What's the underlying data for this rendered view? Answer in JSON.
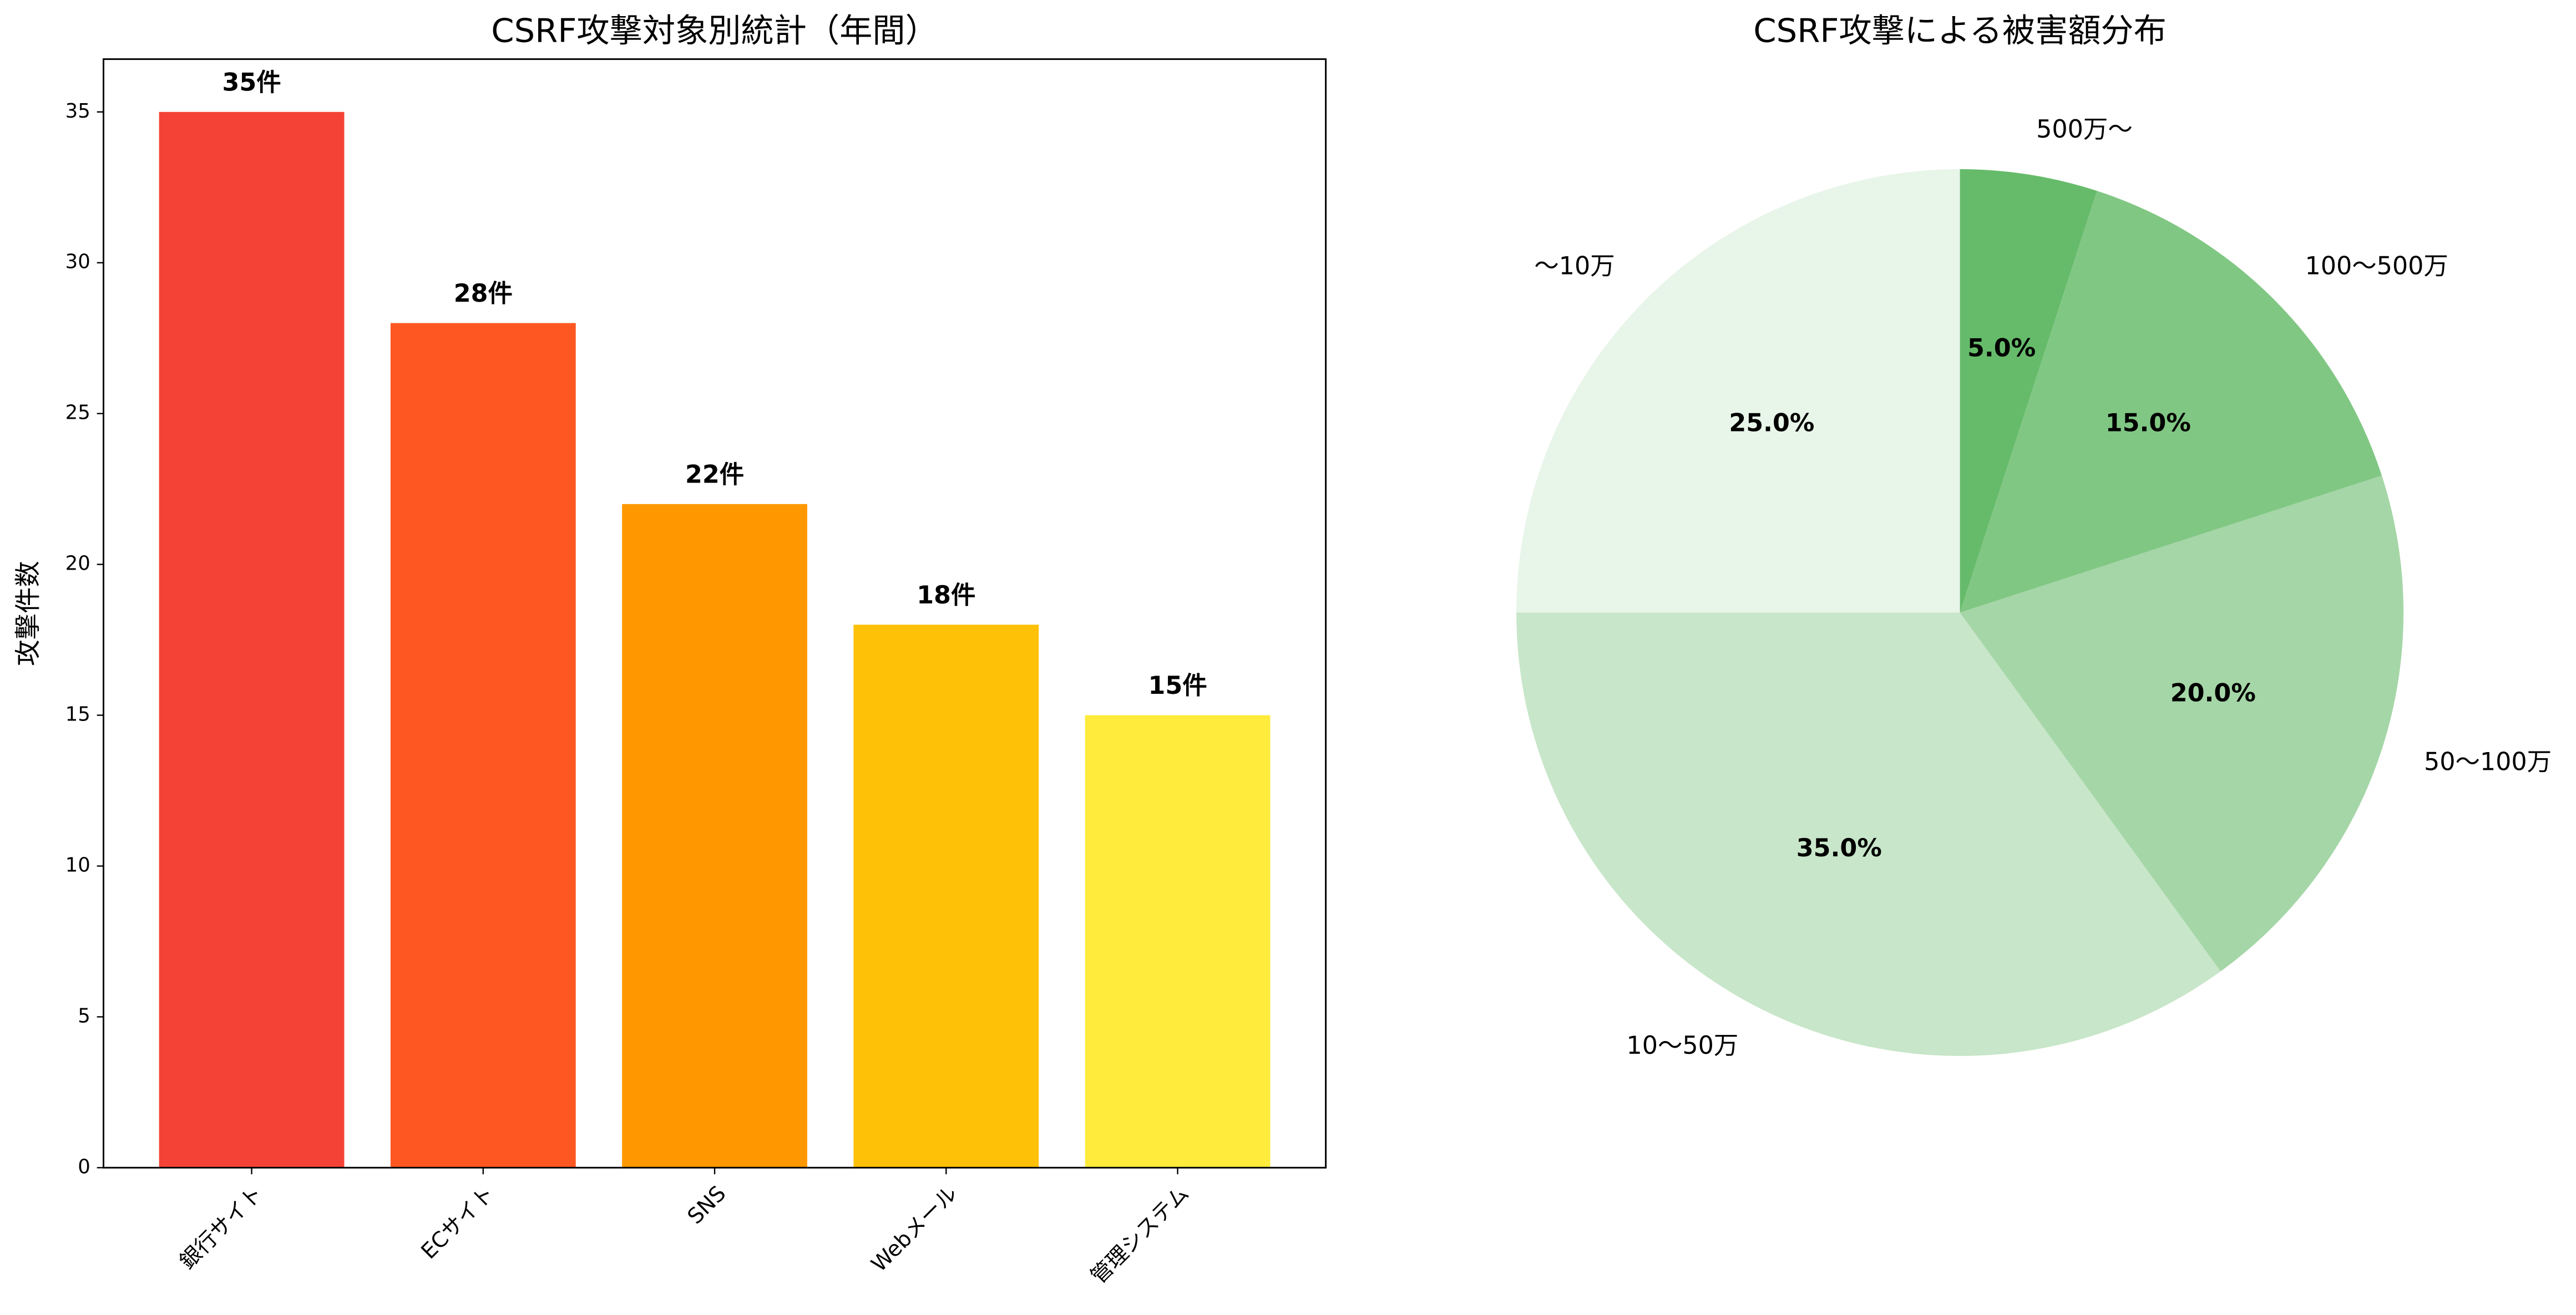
{
  "chart_data": [
    {
      "type": "bar",
      "title": "CSRF攻撃対象別統計（年間）",
      "y_label": "攻撃件数",
      "categories": [
        "銀行サイト",
        "ECサイト",
        "SNS",
        "Webメール",
        "管理システム"
      ],
      "values": [
        35,
        28,
        22,
        18,
        15
      ],
      "value_labels": [
        "35件",
        "28件",
        "22件",
        "18件",
        "15件"
      ],
      "colors": [
        "#f44336",
        "#ff5722",
        "#ff9800",
        "#ffc107",
        "#ffeb3b"
      ],
      "ylim": [
        0,
        36.75
      ],
      "yticks": [
        0,
        5,
        10,
        15,
        20,
        25,
        30,
        35
      ]
    },
    {
      "type": "pie",
      "title": "CSRF攻撃による被害額分布",
      "categories": [
        "～10万",
        "10～50万",
        "50～100万",
        "100～500万",
        "500万～"
      ],
      "values": [
        25,
        35,
        20,
        15,
        5
      ],
      "value_labels": [
        "25.0%",
        "35.0%",
        "20.0%",
        "15.0%",
        "5.0%"
      ],
      "colors": [
        "#e8f5e9",
        "#c8e6c9",
        "#a5d6a7",
        "#81c784",
        "#66bb6a"
      ]
    }
  ]
}
